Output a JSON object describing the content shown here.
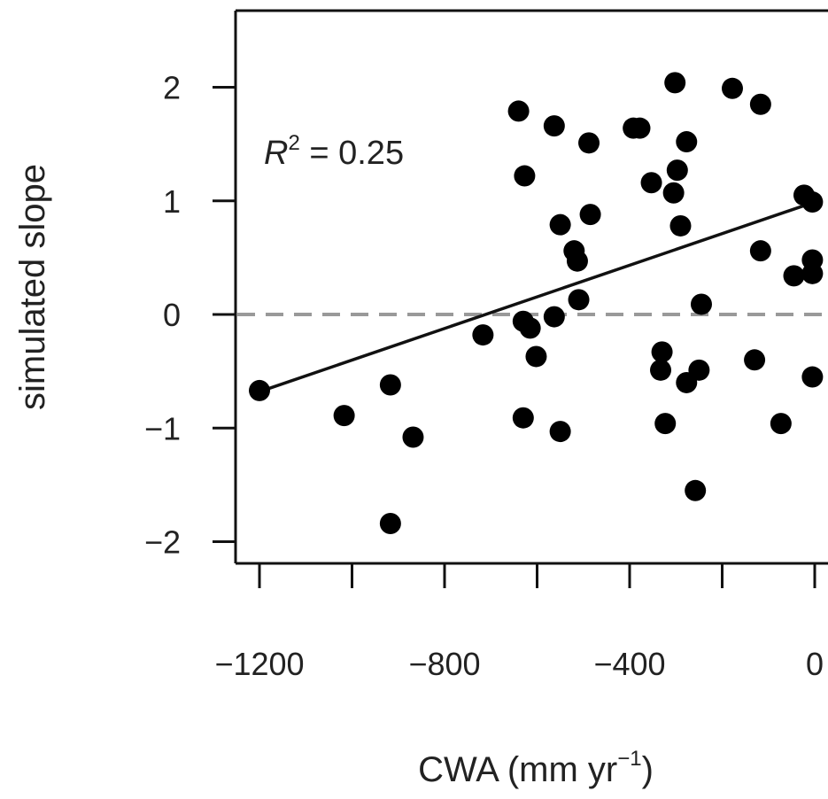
{
  "chart_data": {
    "type": "scatter",
    "xlabel": "CWA (mm yr",
    "xlabel_sup": "−1",
    "xlabel_close": ")",
    "ylabel": "simulated slope",
    "xlim": [
      -1250,
      50
    ],
    "ylim": [
      -2.15,
      2.65
    ],
    "x_ticks": [
      -1200,
      -1000,
      -800,
      -600,
      -400,
      -200,
      0
    ],
    "x_tick_labels": [
      "−1200",
      "",
      "−800",
      "",
      "−400",
      "",
      "0"
    ],
    "y_ticks": [
      -2,
      -1,
      0,
      1,
      2
    ],
    "y_tick_labels": [
      "−2",
      "−1",
      "0",
      "1",
      "2"
    ],
    "annotation": {
      "prefix": "R",
      "sup": "2",
      "suffix": " = 0.25"
    },
    "reference_line": {
      "y": 0,
      "style": "dashed",
      "color": "#999999"
    },
    "fit_line": {
      "x": [
        -1200,
        0
      ],
      "y": [
        -0.68,
        0.99
      ],
      "color": "#111111"
    },
    "marker_color": "#000000",
    "points": [
      {
        "x": -1200,
        "y": -0.67
      },
      {
        "x": -1017,
        "y": -0.89
      },
      {
        "x": -917,
        "y": -0.62
      },
      {
        "x": -917,
        "y": -1.84
      },
      {
        "x": -868,
        "y": -1.08
      },
      {
        "x": -717,
        "y": -0.18
      },
      {
        "x": -640,
        "y": 1.79
      },
      {
        "x": -627,
        "y": 1.22
      },
      {
        "x": -630,
        "y": -0.06
      },
      {
        "x": -615,
        "y": -0.12
      },
      {
        "x": -602,
        "y": -0.37
      },
      {
        "x": -630,
        "y": -0.91
      },
      {
        "x": -563,
        "y": 1.66
      },
      {
        "x": -563,
        "y": -0.02
      },
      {
        "x": -550,
        "y": 0.79
      },
      {
        "x": -550,
        "y": -1.03
      },
      {
        "x": -520,
        "y": 0.56
      },
      {
        "x": -513,
        "y": 0.47
      },
      {
        "x": -510,
        "y": 0.13
      },
      {
        "x": -488,
        "y": 1.51
      },
      {
        "x": -485,
        "y": 0.88
      },
      {
        "x": -392,
        "y": 1.64
      },
      {
        "x": -378,
        "y": 1.64
      },
      {
        "x": -353,
        "y": 1.16
      },
      {
        "x": -330,
        "y": -0.33
      },
      {
        "x": -333,
        "y": -0.49
      },
      {
        "x": -323,
        "y": -0.96
      },
      {
        "x": -302,
        "y": 2.04
      },
      {
        "x": -297,
        "y": 1.27
      },
      {
        "x": -305,
        "y": 1.07
      },
      {
        "x": -290,
        "y": 0.78
      },
      {
        "x": -277,
        "y": 1.52
      },
      {
        "x": -277,
        "y": -0.6
      },
      {
        "x": -258,
        "y": -1.55
      },
      {
        "x": -250,
        "y": -0.49
      },
      {
        "x": -245,
        "y": 0.09
      },
      {
        "x": -178,
        "y": 1.99
      },
      {
        "x": -117,
        "y": 1.85
      },
      {
        "x": -117,
        "y": 0.56
      },
      {
        "x": -130,
        "y": -0.4
      },
      {
        "x": -73,
        "y": -0.96
      },
      {
        "x": -45,
        "y": 0.34
      },
      {
        "x": -23,
        "y": 1.05
      },
      {
        "x": -5,
        "y": 0.99
      },
      {
        "x": -5,
        "y": 0.48
      },
      {
        "x": -5,
        "y": 0.36
      },
      {
        "x": -5,
        "y": -0.55
      }
    ]
  }
}
